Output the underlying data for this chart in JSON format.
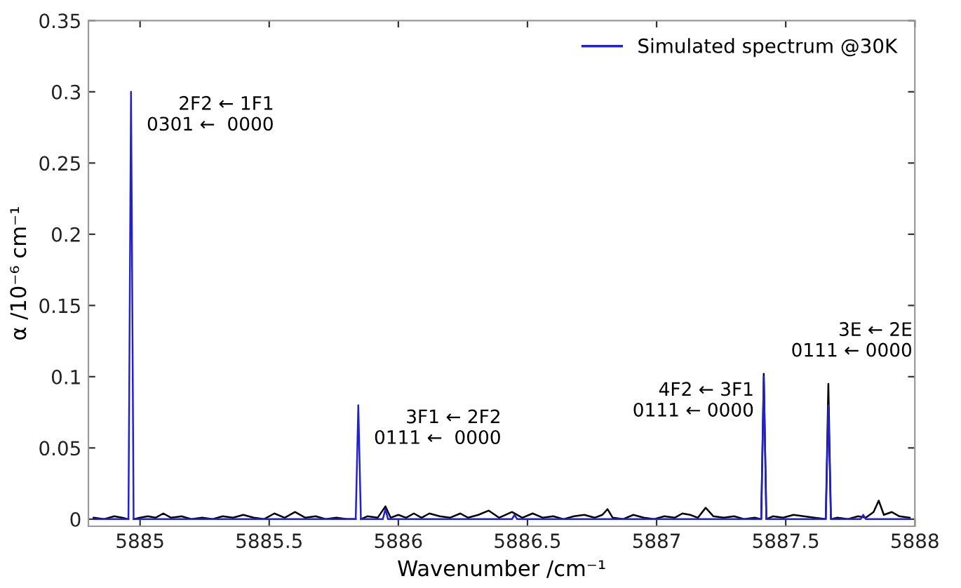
{
  "chart_data": {
    "type": "line",
    "xlabel": "Wavenumber /cm⁻¹",
    "ylabel": "α /10⁻⁶ cm⁻¹",
    "xlim": [
      5884.8,
      5888
    ],
    "ylim": [
      -0.005,
      0.35
    ],
    "xticks": [
      5885,
      5885.5,
      5886,
      5886.5,
      5887,
      5887.5,
      5888
    ],
    "yticks": [
      0,
      0.05,
      0.1,
      0.15,
      0.2,
      0.25,
      0.3,
      0.35
    ],
    "grid": false,
    "legend": "top right",
    "marker": "none",
    "line_style": "solid",
    "series": [
      {
        "color": "#000000",
        "x": [
          5884.82,
          5884.86,
          5884.9,
          5884.93,
          5884.955,
          5884.965,
          5884.975,
          5885.0,
          5885.03,
          5885.06,
          5885.09,
          5885.12,
          5885.16,
          5885.2,
          5885.24,
          5885.28,
          5885.32,
          5885.36,
          5885.4,
          5885.44,
          5885.48,
          5885.52,
          5885.56,
          5885.6,
          5885.64,
          5885.68,
          5885.72,
          5885.76,
          5885.8,
          5885.835,
          5885.845,
          5885.855,
          5885.88,
          5885.92,
          5885.95,
          5885.97,
          5886.0,
          5886.03,
          5886.06,
          5886.09,
          5886.12,
          5886.16,
          5886.2,
          5886.24,
          5886.27,
          5886.31,
          5886.35,
          5886.39,
          5886.44,
          5886.48,
          5886.52,
          5886.56,
          5886.6,
          5886.64,
          5886.68,
          5886.72,
          5886.76,
          5886.79,
          5886.81,
          5886.83,
          5886.87,
          5886.91,
          5886.95,
          5886.99,
          5887.03,
          5887.07,
          5887.1,
          5887.13,
          5887.16,
          5887.19,
          5887.22,
          5887.26,
          5887.3,
          5887.34,
          5887.38,
          5887.405,
          5887.415,
          5887.425,
          5887.45,
          5887.49,
          5887.53,
          5887.57,
          5887.61,
          5887.655,
          5887.665,
          5887.675,
          5887.7,
          5887.74,
          5887.78,
          5887.81,
          5887.84,
          5887.86,
          5887.88,
          5887.91,
          5887.94,
          5887.98
        ],
        "values": [
          0.001,
          0.0,
          0.002,
          0.001,
          0.0,
          null,
          0.0,
          0.001,
          0.002,
          0.001,
          0.004,
          0.001,
          0.002,
          0.0,
          0.001,
          0.0,
          0.002,
          0.001,
          0.003,
          0.001,
          0.0,
          0.004,
          0.001,
          0.005,
          0.001,
          0.002,
          0.0,
          0.001,
          0.0,
          0.0,
          null,
          0.0,
          0.002,
          0.001,
          0.009,
          0.001,
          0.003,
          0.001,
          0.004,
          0.001,
          0.004,
          0.002,
          0.001,
          0.004,
          0.001,
          0.003,
          0.006,
          0.001,
          0.005,
          0.001,
          0.004,
          0.001,
          0.002,
          0.0,
          0.002,
          0.003,
          0.001,
          0.003,
          0.007,
          0.001,
          0.0,
          0.003,
          0.001,
          0.0,
          0.002,
          0.001,
          0.004,
          0.003,
          0.001,
          0.008,
          0.002,
          0.001,
          0.002,
          0.0,
          0.001,
          0.0,
          0.102,
          0.0,
          0.002,
          0.001,
          0.003,
          0.002,
          0.001,
          0.0,
          0.095,
          0.0,
          0.001,
          0.0,
          0.002,
          0.001,
          0.005,
          0.013,
          0.003,
          0.005,
          0.002,
          0.001
        ]
      },
      {
        "name": "Simulated spectrum @30K",
        "color": "#2222cc",
        "x": [
          5884.82,
          5884.955,
          5884.965,
          5884.975,
          5885.835,
          5885.845,
          5885.855,
          5885.94,
          5885.95,
          5885.96,
          5886.44,
          5886.45,
          5886.46,
          5887.405,
          5887.415,
          5887.425,
          5887.655,
          5887.665,
          5887.675,
          5887.79,
          5887.8,
          5887.81,
          5887.98
        ],
        "values": [
          0,
          0,
          0.3,
          0,
          0,
          0.08,
          0,
          0,
          0.007,
          0,
          0,
          0.003,
          0,
          0,
          0.1,
          0,
          0,
          0.08,
          0,
          0,
          0.003,
          0,
          0
        ]
      }
    ],
    "annotations": [
      {
        "text": "2F2 ← 1F1\n0301 ←  0000",
        "x": 5884.965,
        "y": 0.3
      },
      {
        "text": "3F1 ← 2F2\n0111 ←  0000",
        "x": 5885.845,
        "y": 0.08
      },
      {
        "text": "4F2 ← 3F1\n0111 ← 0000",
        "x": 5887.415,
        "y": 0.102
      },
      {
        "text": "3E ← 2E\n0111 ← 0000",
        "x": 5887.665,
        "y": 0.095
      }
    ]
  }
}
